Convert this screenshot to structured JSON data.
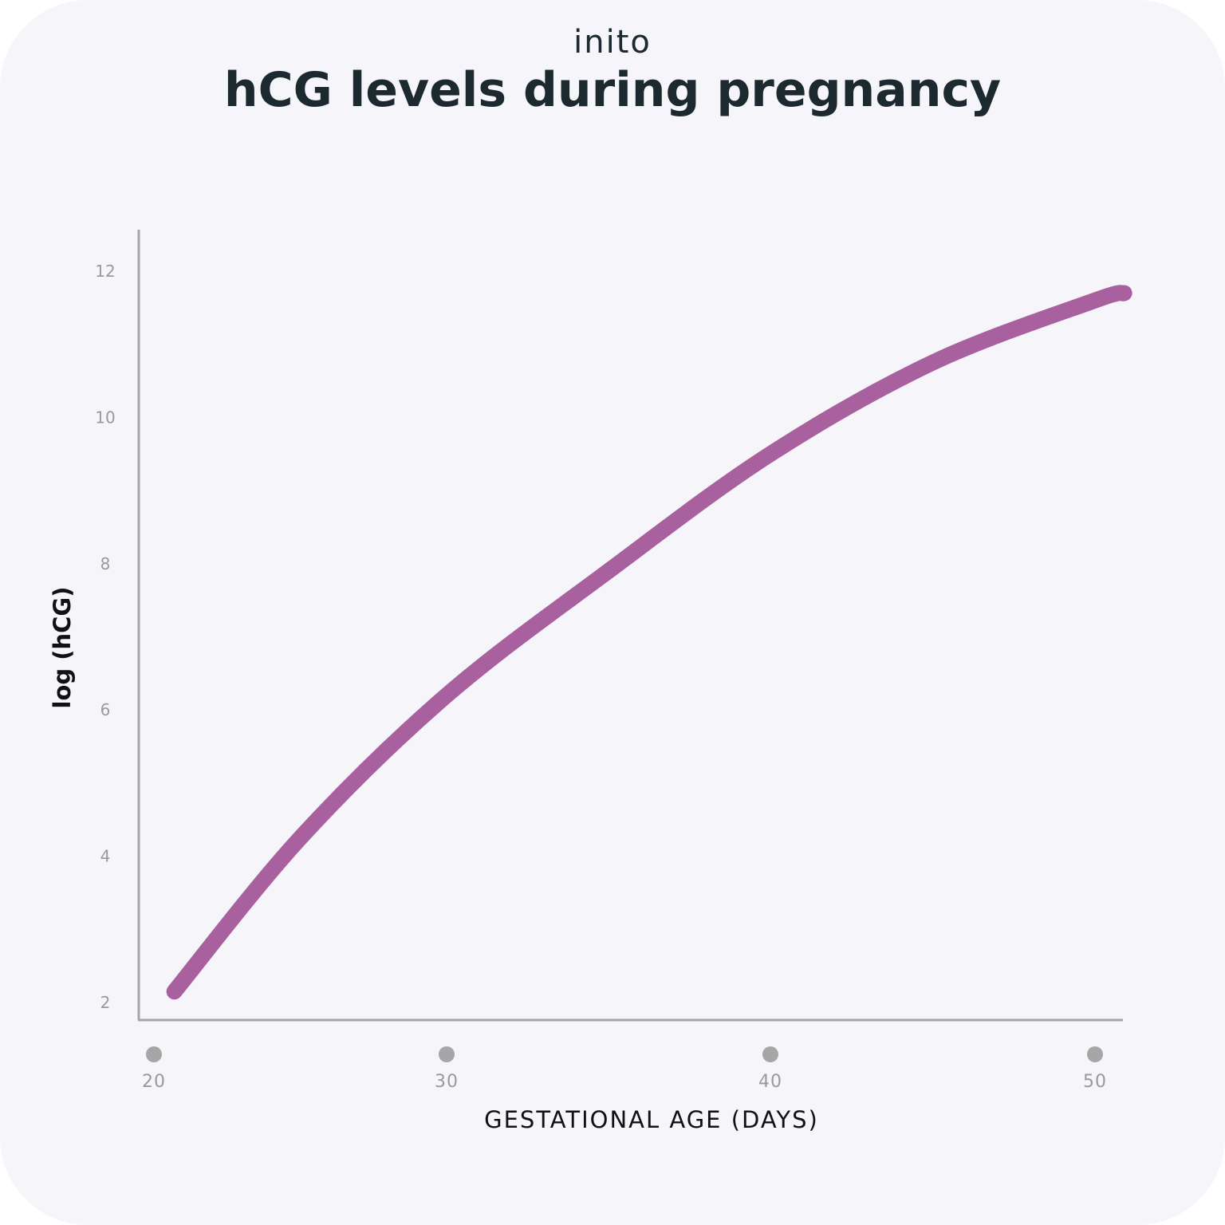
{
  "brand": {
    "logo_text": "inito"
  },
  "chart_data": {
    "type": "line",
    "title": "hCG levels during pregnancy",
    "xlabel": "GESTATIONAL AGE (DAYS)",
    "ylabel": "log (hCG)",
    "x_ticks": [
      "20",
      "30",
      "40",
      "50"
    ],
    "y_ticks": [
      "2",
      "4",
      "6",
      "8",
      "10",
      "12"
    ],
    "xlim": [
      20,
      51
    ],
    "ylim": [
      2,
      12.5
    ],
    "grid": false,
    "series": [
      {
        "color": "#a8609e",
        "x": [
          20.7,
          25,
          30,
          35,
          40,
          45,
          50,
          50.9
        ],
        "y": [
          2.15,
          4.25,
          6.2,
          7.9,
          9.5,
          10.75,
          11.6,
          11.7
        ]
      }
    ]
  }
}
